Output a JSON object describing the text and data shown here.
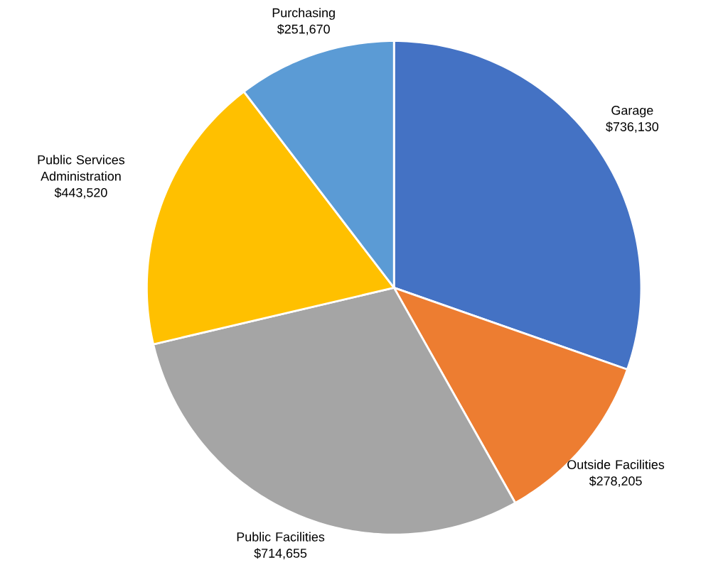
{
  "chart_data": {
    "type": "pie",
    "categories": [
      "Garage",
      "Outside Facilities",
      "Public Facilities",
      "Public Services Administration",
      "Purchasing"
    ],
    "values": [
      736130,
      278205,
      714655,
      443520,
      251670
    ],
    "value_labels": [
      "$736,130",
      "$278,205",
      "$714,655",
      "$443,520",
      "$251,670"
    ],
    "colors": [
      "#4472c4",
      "#ed7d31",
      "#a5a5a5",
      "#ffc000",
      "#5b9bd5"
    ]
  }
}
